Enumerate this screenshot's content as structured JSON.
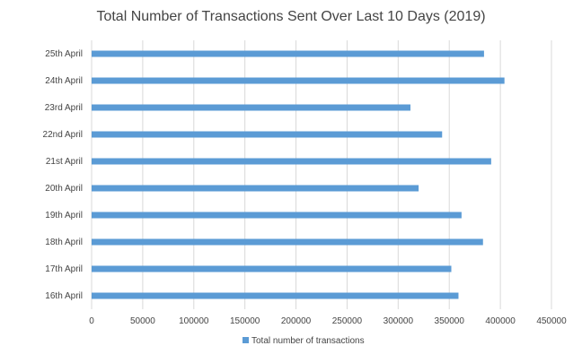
{
  "chart_data": {
    "type": "bar",
    "orientation": "horizontal",
    "title": "Total Number of Transactions Sent Over Last 10 Days (2019)",
    "categories": [
      "25th April",
      "24th April",
      "23rd April",
      "22nd April",
      "21st April",
      "20th April",
      "19th April",
      "18th April",
      "17th April",
      "16th April"
    ],
    "series": [
      {
        "name": "Total number of transactions",
        "values": [
          384000,
          404000,
          312000,
          343000,
          391000,
          320000,
          362000,
          383000,
          352000,
          359000
        ]
      }
    ],
    "xlim": [
      0,
      450000
    ],
    "xticks": [
      "0",
      "50000",
      "100000",
      "150000",
      "200000",
      "250000",
      "300000",
      "350000",
      "400000",
      "450000"
    ],
    "grid": "vertical",
    "legend_position": "bottom",
    "color": "#5b9bd5"
  }
}
